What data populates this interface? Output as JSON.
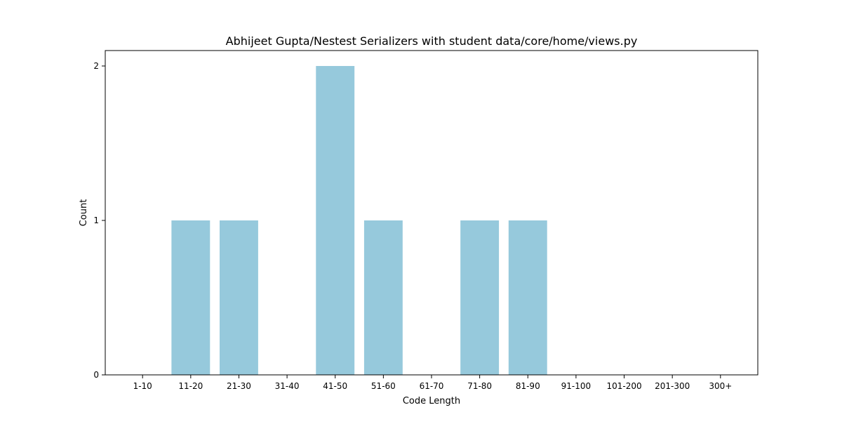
{
  "chart_data": {
    "type": "bar",
    "title": "Abhijeet Gupta/Nestest Serializers with student data/core/home/views.py",
    "xlabel": "Code Length",
    "ylabel": "Count",
    "categories": [
      "1-10",
      "11-20",
      "21-30",
      "31-40",
      "41-50",
      "51-60",
      "61-70",
      "71-80",
      "81-90",
      "91-100",
      "101-200",
      "201-300",
      "300+"
    ],
    "values": [
      0,
      1,
      1,
      0,
      2,
      1,
      0,
      1,
      1,
      0,
      0,
      0,
      0
    ],
    "yticks": [
      0,
      1,
      2
    ],
    "ylim": [
      0,
      2.1
    ],
    "bar_color": "#96c9dc",
    "grid": false,
    "legend": "none"
  }
}
